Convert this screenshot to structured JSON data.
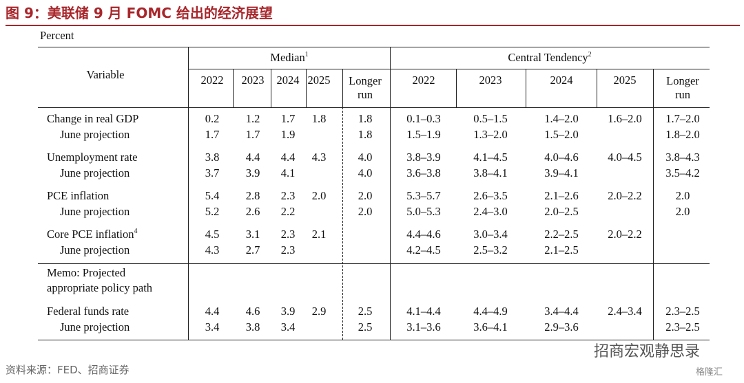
{
  "header": {
    "title": "图 9：美联储 9 月 FOMC 给出的经济展望",
    "unit": "Percent"
  },
  "table": {
    "variable": "Variable",
    "median": {
      "label": "Median",
      "note": "1"
    },
    "central": {
      "label": "Central Tendency",
      "note": "2"
    },
    "years": [
      "2022",
      "2023",
      "2024",
      "2025",
      "Longer run"
    ],
    "groups": [
      {
        "label": "Change in real GDP",
        "values": [
          "0.2",
          "1.2",
          "1.7",
          "1.8",
          "1.8",
          "0.1–0.3",
          "0.5–1.5",
          "1.4–2.0",
          "1.6–2.0",
          "1.7–2.0"
        ],
        "june": {
          "label": "June projection",
          "values": [
            "1.7",
            "1.7",
            "1.9",
            null,
            "1.8",
            "1.5–1.9",
            "1.3–2.0",
            "1.5–2.0",
            null,
            "1.8–2.0"
          ]
        }
      },
      {
        "label": "Unemployment rate",
        "values": [
          "3.8",
          "4.4",
          "4.4",
          "4.3",
          "4.0",
          "3.8–3.9",
          "4.1–4.5",
          "4.0–4.6",
          "4.0–4.5",
          "3.8–4.3"
        ],
        "june": {
          "label": "June projection",
          "values": [
            "3.7",
            "3.9",
            "4.1",
            null,
            "4.0",
            "3.6–3.8",
            "3.8–4.1",
            "3.9–4.1",
            null,
            "3.5–4.2"
          ]
        }
      },
      {
        "label": "PCE inflation",
        "values": [
          "5.4",
          "2.8",
          "2.3",
          "2.0",
          "2.0",
          "5.3–5.7",
          "2.6–3.5",
          "2.1–2.6",
          "2.0–2.2",
          "2.0"
        ],
        "june": {
          "label": "June projection",
          "values": [
            "5.2",
            "2.6",
            "2.2",
            null,
            "2.0",
            "5.0–5.3",
            "2.4–3.0",
            "2.0–2.5",
            null,
            "2.0"
          ]
        }
      },
      {
        "label": "Core PCE inflation",
        "note": "4",
        "values": [
          "4.5",
          "3.1",
          "2.3",
          "2.1",
          null,
          "4.4–4.6",
          "3.0–3.4",
          "2.2–2.5",
          "2.0–2.2",
          null
        ],
        "june": {
          "label": "June projection",
          "values": [
            "4.3",
            "2.7",
            "2.3",
            null,
            null,
            "4.2–4.5",
            "2.5–3.2",
            "2.1–2.5",
            null,
            null
          ]
        }
      }
    ],
    "memo": [
      "Memo: Projected",
      "appropriate policy path"
    ],
    "funds": {
      "label": "Federal funds rate",
      "values": [
        "4.4",
        "4.6",
        "3.9",
        "2.9",
        "2.5",
        "4.1–4.4",
        "4.4–4.9",
        "3.4–4.4",
        "2.4–3.4",
        "2.3–2.5"
      ],
      "june": {
        "label": "June projection",
        "values": [
          "3.4",
          "3.8",
          "3.4",
          null,
          "2.5",
          "3.1–3.6",
          "3.6–4.1",
          "2.9–3.6",
          null,
          "2.3–2.5"
        ]
      }
    }
  },
  "footer": {
    "source": "资料来源：FED、招商证券",
    "watermark": "招商宏观静思录",
    "logo": "格隆汇"
  }
}
